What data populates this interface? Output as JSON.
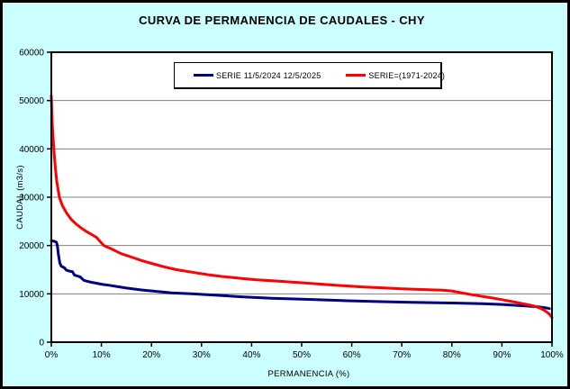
{
  "window": {
    "background_color": "#CCFFFF",
    "plot_background_color": "#FFFFFF",
    "border_color": "#000000",
    "gridline_color": "#808080"
  },
  "chart_data": {
    "type": "line",
    "title": "CURVA DE PERMANENCIA DE CAUDALES - CHY",
    "xlabel": "PERMANENCIA (%)",
    "ylabel": "CAUDAL (m3/s)",
    "xlim": [
      0,
      100
    ],
    "ylim": [
      0,
      60000
    ],
    "grid": "horizontal",
    "legend_position": "top-center",
    "x_axis": {
      "tick_labels": [
        "0%",
        "10%",
        "20%",
        "30%",
        "40%",
        "50%",
        "60%",
        "70%",
        "80%",
        "90%",
        "100%"
      ],
      "tick_values": [
        0,
        10,
        20,
        30,
        40,
        50,
        60,
        70,
        80,
        90,
        100
      ]
    },
    "y_axis": {
      "tick_labels": [
        "0",
        "10000",
        "20000",
        "30000",
        "40000",
        "50000",
        "60000"
      ],
      "tick_values": [
        0,
        10000,
        20000,
        30000,
        40000,
        50000,
        60000
      ]
    },
    "series": [
      {
        "name": "SERIE 11/5/2024 12/5/2025",
        "color": "#000080",
        "x": [
          0,
          0.5,
          1.0,
          1.2,
          1.4,
          1.7,
          2.0,
          2.6,
          3.0,
          3.6,
          4.2,
          4.6,
          5.2,
          5.8,
          6.5,
          7.2,
          8,
          9,
          10,
          12,
          15,
          18,
          21,
          24,
          28,
          33,
          38,
          44,
          50,
          58,
          65,
          72,
          80,
          86,
          90,
          94,
          97,
          98.5,
          99.5
        ],
        "y": [
          21000,
          20900,
          20700,
          20000,
          18200,
          16300,
          15700,
          15400,
          14900,
          14700,
          14600,
          13900,
          13700,
          13500,
          12800,
          12600,
          12400,
          12200,
          12000,
          11700,
          11200,
          10800,
          10500,
          10200,
          10000,
          9700,
          9400,
          9100,
          8900,
          8600,
          8400,
          8250,
          8100,
          7950,
          7800,
          7550,
          7350,
          7150,
          6950
        ]
      },
      {
        "name": "SERIE=(1971-2024)",
        "color": "#FF0000",
        "x": [
          0,
          0.2,
          0.5,
          0.8,
          1.1,
          1.6,
          2.2,
          3,
          4,
          5,
          6,
          7,
          8,
          9,
          10.5,
          12,
          14,
          16,
          18,
          20,
          22.5,
          25,
          28,
          31,
          34,
          38,
          41,
          44,
          47,
          50,
          54,
          58,
          62,
          66,
          70,
          74,
          78,
          80,
          83,
          85,
          87.5,
          90,
          92,
          94,
          95.5,
          96.5,
          97.5,
          98.3,
          99,
          99.5,
          100
        ],
        "y": [
          51000,
          45000,
          40000,
          36200,
          33200,
          30000,
          28300,
          26800,
          25400,
          24400,
          23600,
          22900,
          22300,
          21700,
          20000,
          19300,
          18300,
          17600,
          16900,
          16300,
          15600,
          15000,
          14500,
          14000,
          13600,
          13200,
          12900,
          12700,
          12500,
          12300,
          12000,
          11700,
          11450,
          11250,
          11050,
          10900,
          10750,
          10600,
          10000,
          9650,
          9250,
          8800,
          8400,
          8000,
          7700,
          7450,
          7100,
          6700,
          6200,
          5800,
          5100
        ]
      }
    ]
  }
}
